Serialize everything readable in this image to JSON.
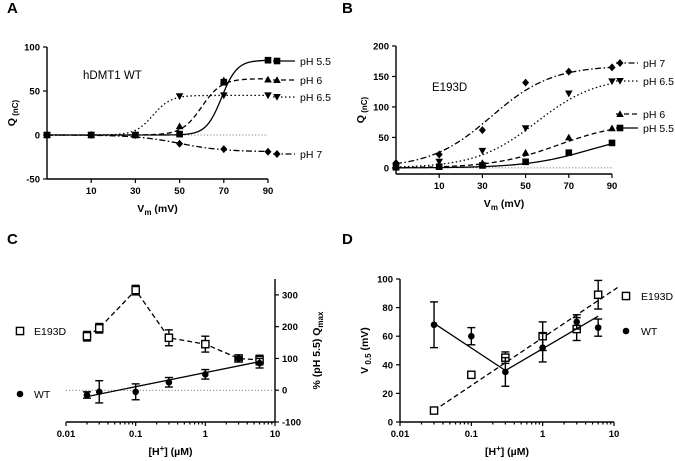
{
  "chart_data": [
    {
      "id": "A",
      "type": "line",
      "panel_label": "A",
      "annotation": "hDMT1 WT",
      "xlabel": "V",
      "xlabel_sub": "m",
      "xlabel_unit": " (mV)",
      "ylabel": "Q",
      "ylabel_sub": "(nC)",
      "xlim": [
        -10,
        90
      ],
      "ylim": [
        -50,
        100
      ],
      "xticks": [
        10,
        30,
        50,
        70,
        90
      ],
      "yticks": [
        -50,
        0,
        50,
        100
      ],
      "series": [
        {
          "name": "pH 5.5",
          "marker": "square",
          "dash": "solid",
          "x": [
            -10,
            10,
            30,
            50,
            70,
            90
          ],
          "y": [
            0,
            0,
            0,
            1,
            60,
            85
          ],
          "fit": {
            "A": 85,
            "vh": 69,
            "k": 3.5
          }
        },
        {
          "name": "pH 6",
          "marker": "triangle",
          "dash": "dashed",
          "x": [
            -10,
            10,
            30,
            50,
            70,
            90
          ],
          "y": [
            0,
            0,
            0,
            10,
            62,
            63
          ],
          "fit": {
            "A": 64,
            "vh": 60,
            "k": 4.5
          }
        },
        {
          "name": "pH 6.5",
          "marker": "triangle-down",
          "dash": "dotted",
          "x": [
            -10,
            10,
            30,
            50,
            70,
            90
          ],
          "y": [
            0,
            0,
            0,
            44,
            45,
            45
          ],
          "fit": {
            "A": 45,
            "vh": 38,
            "k": 4
          }
        },
        {
          "name": "pH 7",
          "marker": "diamond",
          "dash": "dashdot",
          "x": [
            -10,
            10,
            30,
            50,
            70,
            90
          ],
          "y": [
            0,
            0,
            0,
            -10,
            -16,
            -19
          ],
          "fit": {
            "A": -19,
            "vh": 50,
            "k": 10
          }
        }
      ]
    },
    {
      "id": "B",
      "type": "line",
      "panel_label": "B",
      "annotation": "E193D",
      "xlabel": "V",
      "xlabel_sub": "m",
      "xlabel_unit": " (mV)",
      "ylabel": "Q",
      "ylabel_sub": "(nC)",
      "xlim": [
        -10,
        90
      ],
      "ylim": [
        -10,
        200
      ],
      "xticks": [
        10,
        30,
        50,
        70,
        90
      ],
      "yticks": [
        0,
        50,
        100,
        150,
        200
      ],
      "series": [
        {
          "name": "pH 7",
          "marker": "diamond",
          "dash": "dashdot",
          "x": [
            -10,
            10,
            30,
            50,
            70,
            90
          ],
          "y": [
            8,
            22,
            62,
            140,
            158,
            165
          ],
          "fit": {
            "A": 168,
            "vh": 34,
            "k": 14
          }
        },
        {
          "name": "pH 6.5",
          "marker": "triangle-down",
          "dash": "dotted",
          "x": [
            -10,
            10,
            30,
            50,
            70,
            90
          ],
          "y": [
            3,
            10,
            28,
            65,
            122,
            142
          ],
          "fit": {
            "A": 150,
            "vh": 55,
            "k": 14
          }
        },
        {
          "name": "pH 6",
          "marker": "triangle",
          "dash": "dashed",
          "x": [
            -10,
            10,
            30,
            50,
            70,
            90
          ],
          "y": [
            2,
            3,
            8,
            25,
            50,
            65
          ],
          "fit": {
            "A": 75,
            "vh": 65,
            "k": 15
          }
        },
        {
          "name": "pH 5.5",
          "marker": "square",
          "dash": "solid",
          "x": [
            -10,
            10,
            30,
            50,
            70,
            90
          ],
          "y": [
            1,
            2,
            4,
            10,
            25,
            41
          ],
          "fit": {
            "A": 60,
            "vh": 80,
            "k": 15
          }
        }
      ]
    },
    {
      "id": "C",
      "type": "scatter",
      "panel_label": "C",
      "xlabel": "[H",
      "xlabel_sup": "+",
      "xlabel_unit": "] (µM)",
      "ylabel_right": "% (pH 5.5) Q",
      "ylabel_right_sub": "max",
      "xscale": "log",
      "xlim": [
        0.01,
        10
      ],
      "ylim": [
        -100,
        350
      ],
      "xticks": [
        0.01,
        0.1,
        1,
        10
      ],
      "xticklabels": [
        "0.01",
        "0.1",
        "1",
        "10"
      ],
      "yticks": [
        -100,
        0,
        100,
        200,
        300
      ],
      "yticklabels": [
        "-100",
        "0",
        "100",
        "200",
        "300"
      ],
      "series": [
        {
          "name": "E193D",
          "marker": "open-square",
          "line": "dashed",
          "x": [
            0.02,
            0.03,
            0.1,
            0.3,
            1,
            3,
            6
          ],
          "y": [
            170,
            195,
            315,
            165,
            145,
            100,
            95
          ],
          "err": [
            15,
            15,
            15,
            25,
            25,
            5,
            15
          ],
          "line_x": [
            0.02,
            0.03,
            0.1,
            0.3,
            1,
            3,
            6
          ],
          "line_y": [
            170,
            195,
            315,
            165,
            145,
            100,
            95
          ]
        },
        {
          "name": "WT",
          "marker": "filled-circle",
          "line": "solid",
          "x": [
            0.02,
            0.03,
            0.1,
            0.3,
            1,
            3,
            6
          ],
          "y": [
            -15,
            -5,
            -5,
            25,
            50,
            100,
            85
          ],
          "err": [
            10,
            35,
            25,
            15,
            15,
            5,
            15
          ],
          "line_x": [
            0.02,
            6
          ],
          "line_y": [
            -20,
            90
          ]
        }
      ]
    },
    {
      "id": "D",
      "type": "scatter",
      "panel_label": "D",
      "xlabel": "[H",
      "xlabel_sup": "+",
      "xlabel_unit": "] (µM)",
      "ylabel": "V",
      "ylabel_sub": "0.5",
      "ylabel_unit": " (mV)",
      "xscale": "log",
      "xlim": [
        0.01,
        10
      ],
      "ylim": [
        0,
        100
      ],
      "xticks": [
        0.01,
        0.1,
        1,
        10
      ],
      "xticklabels": [
        "0.01",
        "0.1",
        "1",
        "10"
      ],
      "yticks": [
        0,
        20,
        40,
        60,
        80,
        100
      ],
      "yticklabels": [
        "0",
        "20",
        "40",
        "60",
        "80",
        "100"
      ],
      "series": [
        {
          "name": "E193D",
          "marker": "open-square",
          "line": "dashed",
          "x": [
            0.03,
            0.1,
            0.3,
            1,
            3,
            6
          ],
          "y": [
            8,
            33,
            45,
            60,
            65,
            89
          ],
          "err": [
            2,
            1,
            4,
            10,
            8,
            10
          ],
          "line_x": [
            0.03,
            12
          ],
          "line_y": [
            8,
            95
          ]
        },
        {
          "name": "WT",
          "marker": "filled-circle",
          "line": "solid",
          "x": [
            0.03,
            0.1,
            0.3,
            1,
            3,
            6
          ],
          "y": [
            68,
            60,
            35,
            52,
            70,
            66
          ],
          "err": [
            16,
            6,
            10,
            10,
            5,
            6
          ],
          "line_x": [
            0.03,
            0.3,
            6
          ],
          "line_y": [
            69,
            36,
            74
          ]
        }
      ]
    }
  ]
}
